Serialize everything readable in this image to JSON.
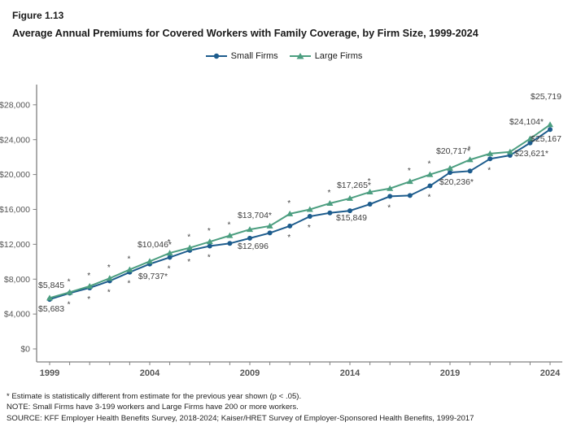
{
  "header": {
    "figure_label": "Figure 1.13",
    "title": "Average Annual Premiums for Covered Workers with Family Coverage, by Firm Size, 1999-2024"
  },
  "legend": {
    "small_firms_label": "Small Firms",
    "large_firms_label": "Large Firms"
  },
  "colors": {
    "small_firms": "#1D5C8D",
    "large_firms": "#4C9E80",
    "axis": "#808080",
    "tick_text": "#555555",
    "label_text": "#404040"
  },
  "footnotes": [
    "* Estimate is statistically different from estimate for the previous year shown (p < .05).",
    "NOTE: Small Firms have 3-199 workers and Large Firms have 200 or more workers.",
    "SOURCE: KFF Employer Health Benefits Survey, 2018-2024; Kaiser/HRET Survey of Employer-Sponsored Health Benefits, 1999-2017"
  ],
  "chart_data": {
    "type": "line",
    "title": "Average Annual Premiums for Covered Workers with Family Coverage, by Firm Size, 1999-2024",
    "x": [
      1999,
      2000,
      2001,
      2002,
      2003,
      2004,
      2005,
      2006,
      2007,
      2008,
      2009,
      2010,
      2011,
      2012,
      2013,
      2014,
      2015,
      2016,
      2017,
      2018,
      2019,
      2020,
      2021,
      2022,
      2023,
      2024
    ],
    "x_tick_labels": [
      "1999",
      "2004",
      "2009",
      "2014",
      "2019",
      "2024"
    ],
    "ylim": [
      0,
      28000
    ],
    "y_ticks": [
      0,
      4000,
      8000,
      12000,
      16000,
      20000,
      24000,
      28000
    ],
    "grid": false,
    "legend_position": "top-center",
    "series": [
      {
        "name": "Small Firms",
        "marker": "circle",
        "values": [
          5683,
          6400,
          7000,
          7800,
          8800,
          9737,
          10500,
          11300,
          11800,
          12100,
          12696,
          13300,
          14100,
          15200,
          15600,
          15849,
          16600,
          17500,
          17600,
          18700,
          20236,
          20400,
          21800,
          22200,
          23621,
          25167
        ],
        "sig_years": [
          2000,
          2001,
          2002,
          2003,
          2005,
          2006,
          2007,
          2011,
          2012,
          2016,
          2018,
          2021
        ]
      },
      {
        "name": "Large Firms",
        "marker": "triangle",
        "values": [
          5845,
          6500,
          7200,
          8100,
          9100,
          10046,
          11000,
          11600,
          12300,
          13000,
          13704,
          14100,
          15500,
          16000,
          16700,
          17265,
          18000,
          18400,
          19200,
          20000,
          20717,
          21700,
          22400,
          22600,
          24104,
          25719
        ],
        "sig_years": [
          2000,
          2001,
          2002,
          2003,
          2005,
          2006,
          2007,
          2008,
          2011,
          2013,
          2015,
          2017,
          2018,
          2020
        ]
      }
    ],
    "point_labels": [
      {
        "text": "$5,845",
        "x": 47,
        "y": 354,
        "anchor": "start"
      },
      {
        "text": "$5,683",
        "x": 47,
        "y": 383,
        "anchor": "start"
      },
      {
        "text": "$10,046*",
        "x": 190,
        "y": 304,
        "anchor": "middle"
      },
      {
        "text": "$9,737*",
        "x": 188,
        "y": 343,
        "anchor": "middle"
      },
      {
        "text": "$13,704*",
        "x": 313,
        "y": 268,
        "anchor": "middle"
      },
      {
        "text": "$12,696",
        "x": 311,
        "y": 306,
        "anchor": "middle"
      },
      {
        "text": "$17,265*",
        "x": 435,
        "y": 231,
        "anchor": "middle"
      },
      {
        "text": "$15,849",
        "x": 432,
        "y": 271,
        "anchor": "middle"
      },
      {
        "text": "$20,717*",
        "x": 557,
        "y": 189,
        "anchor": "middle"
      },
      {
        "text": "$20,236*",
        "x": 561,
        "y": 227,
        "anchor": "middle"
      },
      {
        "text": "$25,719",
        "x": 690,
        "y": 122,
        "anchor": "end"
      },
      {
        "text": "$24,104*",
        "x": 668,
        "y": 153,
        "anchor": "end"
      },
      {
        "text": "$25,167",
        "x": 690,
        "y": 174,
        "anchor": "end"
      },
      {
        "text": "$23,621*",
        "x": 674,
        "y": 192,
        "anchor": "end"
      }
    ]
  }
}
